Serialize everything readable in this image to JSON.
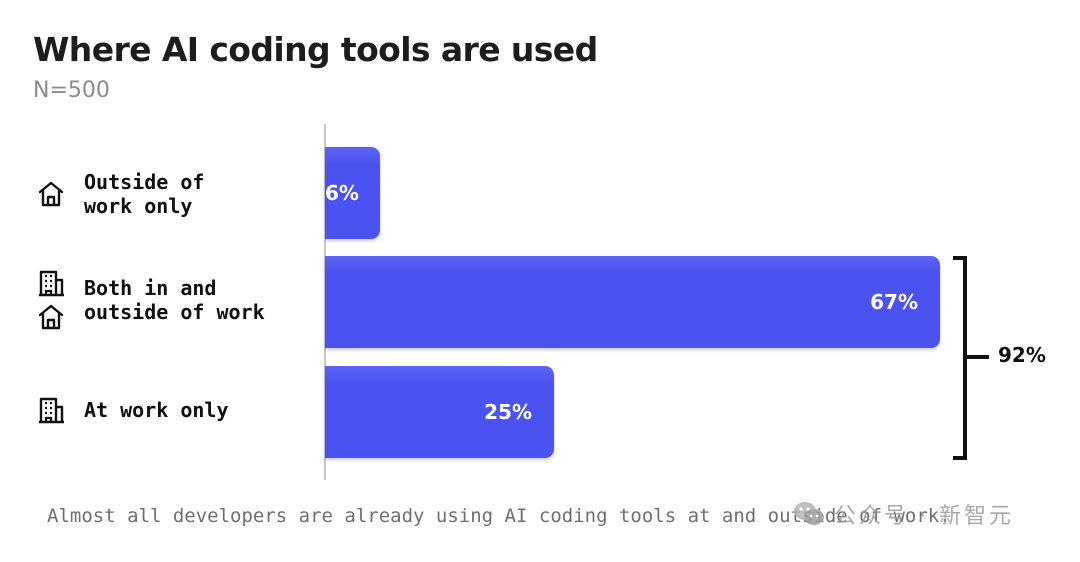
{
  "chart_data": {
    "type": "bar",
    "orientation": "horizontal",
    "title": "Where AI coding tools are used",
    "subtitle": "N=500",
    "categories": [
      "Outside of\nwork only",
      "Both in and\noutside of work",
      "At work only"
    ],
    "values": [
      6,
      67,
      25
    ],
    "value_labels": [
      "6%",
      "67%",
      "25%"
    ],
    "xlim": [
      0,
      67
    ],
    "grid": false,
    "bracket": {
      "label": "92%",
      "spans": [
        "Both in and\noutside of work",
        "At work only"
      ]
    },
    "caption": "Almost all developers are already using AI coding tools at and outside of work.",
    "bar_color": "#4a52ef",
    "icons": [
      [
        "house-icon"
      ],
      [
        "office-building-icon",
        "house-icon"
      ],
      [
        "office-building-icon"
      ]
    ]
  },
  "watermark": {
    "text": "公众号 · 新智元"
  }
}
